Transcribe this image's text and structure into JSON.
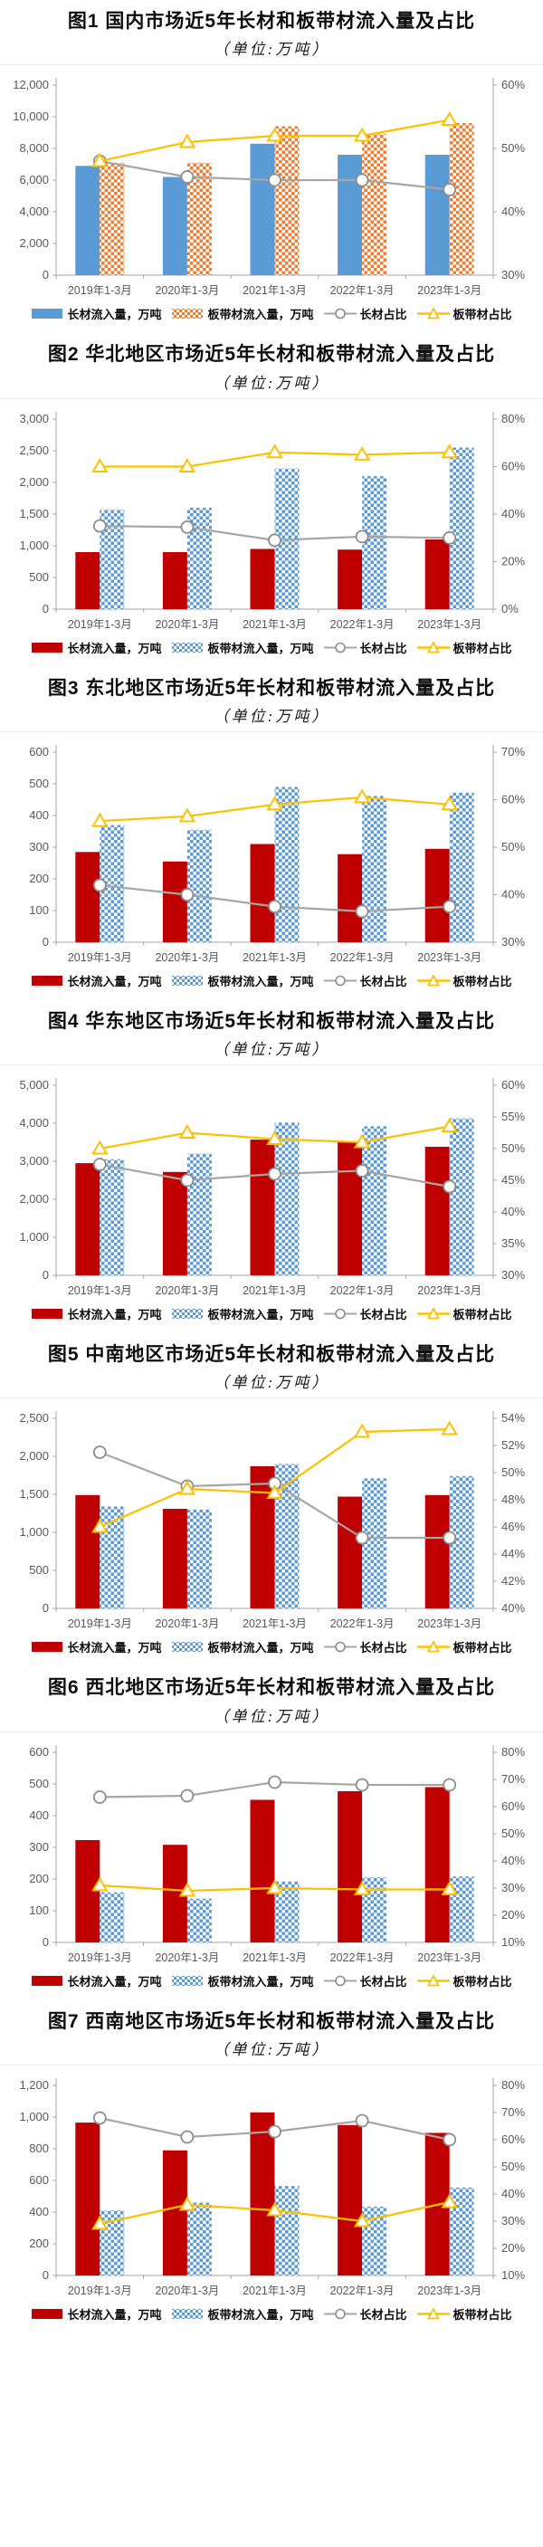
{
  "chart_data": [
    {
      "type": "combo-bar-line",
      "figure_label": "图1",
      "title": "图1 国内市场近5年长材和板带材流入量及占比",
      "subtitle": "（单位:万吨）",
      "categories": [
        "2019年1-3月",
        "2020年1-3月",
        "2021年1-3月",
        "2022年1-3月",
        "2023年1-3月"
      ],
      "left_axis": {
        "min": 0,
        "max": 12000,
        "step": 2000
      },
      "right_axis": {
        "min": 30,
        "max": 60,
        "step": 10,
        "suffix": "%"
      },
      "series": [
        {
          "name": "长材流入量，万吨",
          "type": "bar",
          "style": "solid",
          "color": "#5B9BD5",
          "axis": "left",
          "values": [
            6900,
            6200,
            8300,
            7600,
            7600
          ]
        },
        {
          "name": "板带材流入量，万吨",
          "type": "bar",
          "style": "checker",
          "color": "#ED7D31",
          "axis": "left",
          "values": [
            7100,
            7100,
            9400,
            8900,
            9600
          ]
        },
        {
          "name": "长材占比",
          "type": "line",
          "marker": "circle",
          "color": "#A6A6A6",
          "axis": "right",
          "values": [
            48,
            45.5,
            45,
            45,
            43.5
          ]
        },
        {
          "name": "板带材占比",
          "type": "line",
          "marker": "triangle",
          "color": "#FFC000",
          "axis": "right",
          "values": [
            48,
            51,
            52,
            52,
            54.5
          ]
        }
      ]
    },
    {
      "type": "combo-bar-line",
      "figure_label": "图2",
      "title": "图2 华北地区市场近5年长材和板带材流入量及占比",
      "subtitle": "（单位:万吨）",
      "categories": [
        "2019年1-3月",
        "2020年1-3月",
        "2021年1-3月",
        "2022年1-3月",
        "2023年1-3月"
      ],
      "left_axis": {
        "min": 0,
        "max": 3000,
        "step": 500
      },
      "right_axis": {
        "min": 0,
        "max": 80,
        "step": 20,
        "suffix": "%"
      },
      "series": [
        {
          "name": "长材流入量，万吨",
          "type": "bar",
          "style": "solid",
          "color": "#C00000",
          "axis": "left",
          "values": [
            900,
            900,
            950,
            940,
            1100
          ]
        },
        {
          "name": "板带材流入量，万吨",
          "type": "bar",
          "style": "checker",
          "color": "#5B9BD5",
          "axis": "left",
          "values": [
            1570,
            1600,
            2220,
            2100,
            2550
          ]
        },
        {
          "name": "长材占比",
          "type": "line",
          "marker": "circle",
          "color": "#A6A6A6",
          "axis": "right",
          "values": [
            35,
            34.5,
            29,
            30.5,
            30
          ]
        },
        {
          "name": "板带材占比",
          "type": "line",
          "marker": "triangle",
          "color": "#FFC000",
          "axis": "right",
          "values": [
            60,
            60,
            66,
            65,
            66
          ]
        }
      ]
    },
    {
      "type": "combo-bar-line",
      "figure_label": "图3",
      "title": "图3 东北地区市场近5年长材和板带材流入量及占比",
      "subtitle": "（单位:万吨）",
      "categories": [
        "2019年1-3月",
        "2020年1-3月",
        "2021年1-3月",
        "2022年1-3月",
        "2023年1-3月"
      ],
      "left_axis": {
        "min": 0,
        "max": 600,
        "step": 100
      },
      "right_axis": {
        "min": 30,
        "max": 70,
        "step": 10,
        "suffix": "%"
      },
      "series": [
        {
          "name": "长材流入量，万吨",
          "type": "bar",
          "style": "solid",
          "color": "#C00000",
          "axis": "left",
          "values": [
            285,
            255,
            310,
            278,
            295
          ]
        },
        {
          "name": "板带材流入量，万吨",
          "type": "bar",
          "style": "checker",
          "color": "#5B9BD5",
          "axis": "left",
          "values": [
            370,
            355,
            490,
            462,
            472
          ]
        },
        {
          "name": "长材占比",
          "type": "line",
          "marker": "circle",
          "color": "#A6A6A6",
          "axis": "right",
          "values": [
            42,
            40,
            37.5,
            36.5,
            37.5
          ]
        },
        {
          "name": "板带材占比",
          "type": "line",
          "marker": "triangle",
          "color": "#FFC000",
          "axis": "right",
          "values": [
            55.5,
            56.5,
            59,
            60.5,
            59
          ]
        }
      ]
    },
    {
      "type": "combo-bar-line",
      "figure_label": "图4",
      "title": "图4 华东地区市场近5年长材和板带材流入量及占比",
      "subtitle": "（单位:万吨）",
      "categories": [
        "2019年1-3月",
        "2020年1-3月",
        "2021年1-3月",
        "2022年1-3月",
        "2023年1-3月"
      ],
      "left_axis": {
        "min": 0,
        "max": 5000,
        "step": 1000
      },
      "right_axis": {
        "min": 30,
        "max": 60,
        "step": 5,
        "suffix": "%"
      },
      "series": [
        {
          "name": "长材流入量，万吨",
          "type": "bar",
          "style": "solid",
          "color": "#C00000",
          "axis": "left",
          "values": [
            2950,
            2720,
            3570,
            3520,
            3380
          ]
        },
        {
          "name": "板带材流入量，万吨",
          "type": "bar",
          "style": "checker",
          "color": "#5B9BD5",
          "axis": "left",
          "values": [
            3050,
            3200,
            4020,
            3920,
            4130
          ]
        },
        {
          "name": "长材占比",
          "type": "line",
          "marker": "circle",
          "color": "#A6A6A6",
          "axis": "right",
          "values": [
            47.5,
            45,
            46,
            46.5,
            44
          ]
        },
        {
          "name": "板带材占比",
          "type": "line",
          "marker": "triangle",
          "color": "#FFC000",
          "axis": "right",
          "values": [
            50,
            52.5,
            51.5,
            51,
            53.5
          ]
        }
      ]
    },
    {
      "type": "combo-bar-line",
      "figure_label": "图5",
      "title": "图5 中南地区市场近5年长材和板带材流入量及占比",
      "subtitle": "（单位:万吨）",
      "categories": [
        "2019年1-3月",
        "2020年1-3月",
        "2021年1-3月",
        "2022年1-3月",
        "2023年1-3月"
      ],
      "left_axis": {
        "min": 0,
        "max": 2500,
        "step": 500
      },
      "right_axis": {
        "min": 40,
        "max": 54,
        "step": 2,
        "suffix": "%"
      },
      "series": [
        {
          "name": "长材流入量，万吨",
          "type": "bar",
          "style": "solid",
          "color": "#C00000",
          "axis": "left",
          "values": [
            1490,
            1310,
            1870,
            1470,
            1490
          ]
        },
        {
          "name": "板带材流入量，万吨",
          "type": "bar",
          "style": "checker",
          "color": "#5B9BD5",
          "axis": "left",
          "values": [
            1340,
            1300,
            1900,
            1710,
            1740
          ]
        },
        {
          "name": "长材占比",
          "type": "line",
          "marker": "circle",
          "color": "#A6A6A6",
          "axis": "right",
          "values": [
            51.5,
            49,
            49.2,
            45.2,
            45.2
          ]
        },
        {
          "name": "板带材占比",
          "type": "line",
          "marker": "triangle",
          "color": "#FFC000",
          "axis": "right",
          "values": [
            46,
            48.8,
            48.5,
            53,
            53.2
          ]
        }
      ]
    },
    {
      "type": "combo-bar-line",
      "figure_label": "图6",
      "title": "图6 西北地区市场近5年长材和板带材流入量及占比",
      "subtitle": "（单位:万吨）",
      "categories": [
        "2019年1-3月",
        "2020年1-3月",
        "2021年1-3月",
        "2022年1-3月",
        "2023年1-3月"
      ],
      "left_axis": {
        "min": 0,
        "max": 600,
        "step": 100
      },
      "right_axis": {
        "min": 10,
        "max": 80,
        "step": 10,
        "suffix": "%"
      },
      "series": [
        {
          "name": "长材流入量，万吨",
          "type": "bar",
          "style": "solid",
          "color": "#C00000",
          "axis": "left",
          "values": [
            323,
            308,
            450,
            477,
            490
          ]
        },
        {
          "name": "板带材流入量，万吨",
          "type": "bar",
          "style": "checker",
          "color": "#5B9BD5",
          "axis": "left",
          "values": [
            158,
            138,
            192,
            205,
            208
          ]
        },
        {
          "name": "长材占比",
          "type": "line",
          "marker": "circle",
          "color": "#A6A6A6",
          "axis": "right",
          "values": [
            63.5,
            64,
            69,
            68,
            68
          ]
        },
        {
          "name": "板带材占比",
          "type": "line",
          "marker": "triangle",
          "color": "#FFC000",
          "axis": "right",
          "values": [
            31,
            29,
            30,
            29.5,
            29.5
          ]
        }
      ]
    },
    {
      "type": "combo-bar-line",
      "figure_label": "图7",
      "title": "图7 西南地区市场近5年长材和板带材流入量及占比",
      "subtitle": "（单位:万吨）",
      "categories": [
        "2019年1-3月",
        "2020年1-3月",
        "2021年1-3月",
        "2022年1-3月",
        "2023年1-3月"
      ],
      "left_axis": {
        "min": 0,
        "max": 1200,
        "step": 200
      },
      "right_axis": {
        "min": 10,
        "max": 80,
        "step": 10,
        "suffix": "%"
      },
      "series": [
        {
          "name": "长材流入量，万吨",
          "type": "bar",
          "style": "solid",
          "color": "#C00000",
          "axis": "left",
          "values": [
            965,
            790,
            1030,
            950,
            900
          ]
        },
        {
          "name": "板带材流入量，万吨",
          "type": "bar",
          "style": "checker",
          "color": "#5B9BD5",
          "axis": "left",
          "values": [
            410,
            460,
            565,
            435,
            555
          ]
        },
        {
          "name": "长材占比",
          "type": "line",
          "marker": "circle",
          "color": "#A6A6A6",
          "axis": "right",
          "values": [
            68,
            61,
            63,
            67,
            60
          ]
        },
        {
          "name": "板带材占比",
          "type": "line",
          "marker": "triangle",
          "color": "#FFC000",
          "axis": "right",
          "values": [
            29,
            36,
            34,
            30,
            37
          ]
        }
      ]
    }
  ]
}
